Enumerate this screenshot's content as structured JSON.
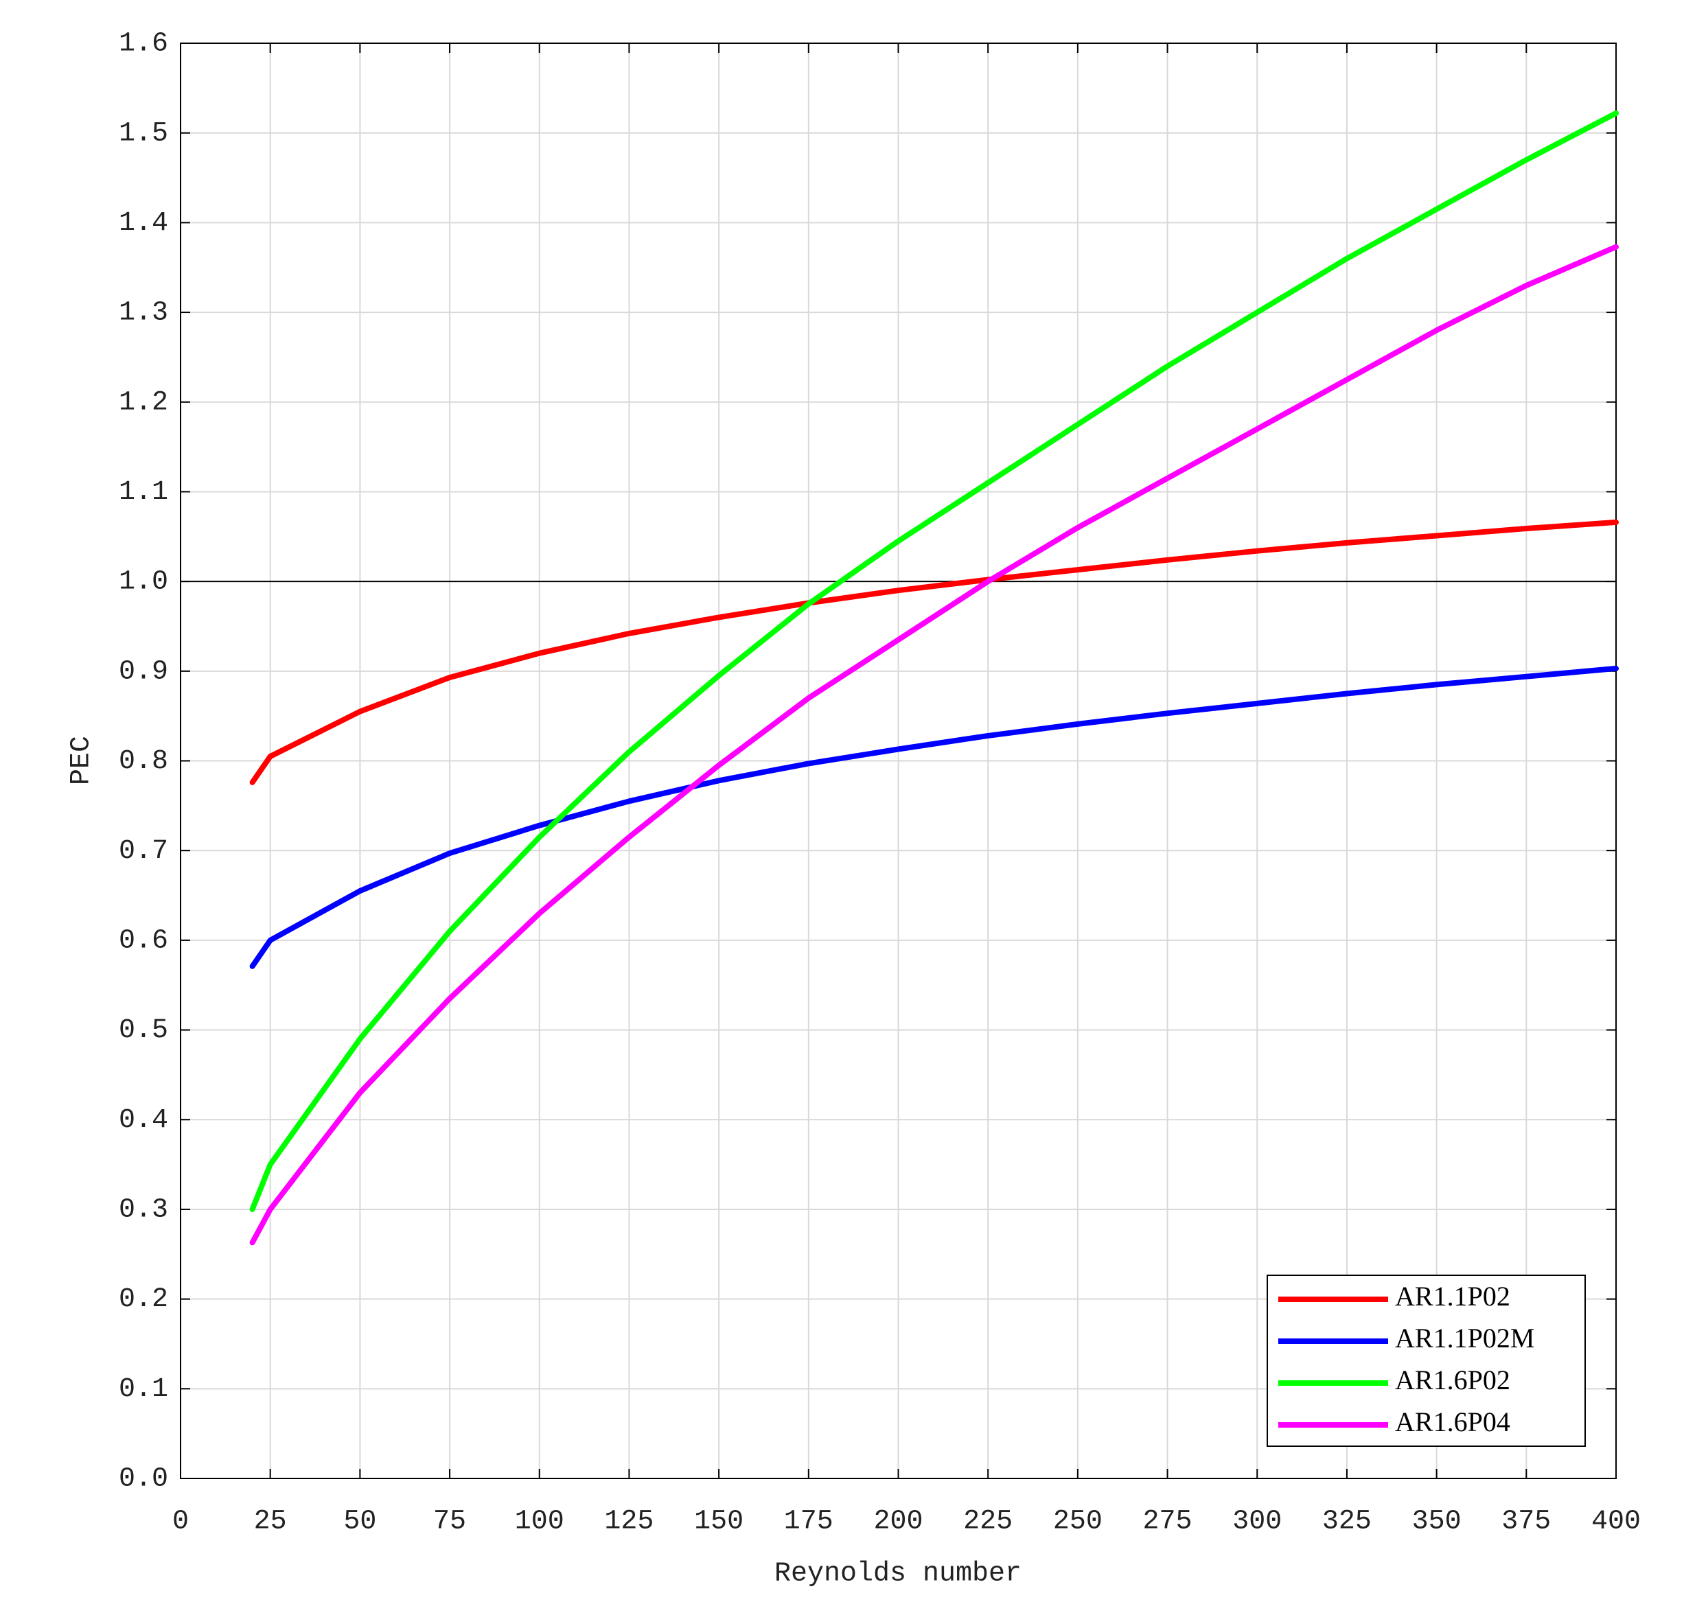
{
  "chart_data": {
    "type": "line",
    "xlabel": "Reynolds number",
    "ylabel": "PEC",
    "x": [
      20,
      25,
      50,
      75,
      100,
      125,
      150,
      175,
      200,
      225,
      250,
      275,
      300,
      325,
      350,
      375,
      400
    ],
    "series": [
      {
        "name": "AR1.1P02",
        "color": "#ff0000",
        "values": [
          0.776,
          0.805,
          0.855,
          0.893,
          0.92,
          0.942,
          0.96,
          0.976,
          0.99,
          1.002,
          1.013,
          1.024,
          1.034,
          1.043,
          1.051,
          1.059,
          1.066
        ]
      },
      {
        "name": "AR1.1P02M",
        "color": "#0000ff",
        "values": [
          0.571,
          0.6,
          0.655,
          0.697,
          0.728,
          0.755,
          0.778,
          0.797,
          0.813,
          0.828,
          0.841,
          0.853,
          0.864,
          0.875,
          0.885,
          0.894,
          0.903
        ]
      },
      {
        "name": "AR1.6P02",
        "color": "#00ff00",
        "values": [
          0.3,
          0.35,
          0.49,
          0.61,
          0.715,
          0.81,
          0.895,
          0.975,
          1.045,
          1.11,
          1.175,
          1.24,
          1.3,
          1.36,
          1.415,
          1.47,
          1.522
        ]
      },
      {
        "name": "AR1.6P04",
        "color": "#ff00ff",
        "values": [
          0.263,
          0.3,
          0.43,
          0.535,
          0.63,
          0.715,
          0.795,
          0.87,
          0.935,
          1.0,
          1.06,
          1.115,
          1.17,
          1.225,
          1.28,
          1.33,
          1.373
        ]
      }
    ],
    "reference_line": 1,
    "xlim": [
      0,
      400
    ],
    "xticks": [
      0,
      25,
      50,
      75,
      100,
      125,
      150,
      175,
      200,
      225,
      250,
      275,
      300,
      325,
      350,
      375,
      400
    ],
    "ylim": [
      0,
      1.6
    ],
    "yticks": [
      {
        "value": 0,
        "label": "0.0"
      },
      0.1,
      0.2,
      0.3,
      0.4,
      0.5,
      0.6,
      0.7,
      0.8,
      0.9,
      {
        "value": 1,
        "label": "1.0"
      },
      1.1,
      1.2,
      1.3,
      1.4,
      1.5,
      1.6
    ],
    "grid": true,
    "legend": "lower right"
  }
}
